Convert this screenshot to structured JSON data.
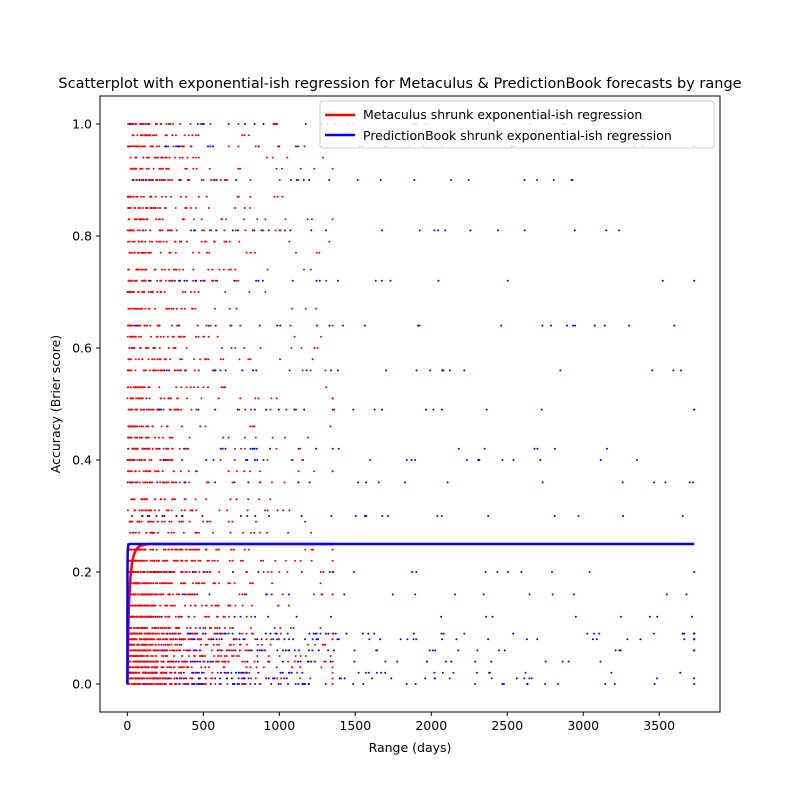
{
  "chart_data": {
    "type": "scatter",
    "title": "Scatterplot with exponential-ish regression for Metaculus & PredictionBook forecasts by range",
    "xlabel": "Range (days)",
    "ylabel": "Accuracy (Brier score)",
    "xlim": [
      -180,
      3900
    ],
    "ylim": [
      -0.05,
      1.05
    ],
    "xticks": [
      0,
      500,
      1000,
      1500,
      2000,
      2500,
      3000,
      3500
    ],
    "yticks": [
      0.0,
      0.2,
      0.4,
      0.6,
      0.8,
      1.0
    ],
    "xtick_labels": [
      "0",
      "500",
      "1000",
      "1500",
      "2000",
      "2500",
      "3000",
      "3500"
    ],
    "ytick_labels": [
      "0.0",
      "0.2",
      "0.4",
      "0.6",
      "0.8",
      "1.0"
    ],
    "grid": false,
    "legend_position": "top-right",
    "series": [
      {
        "name": "Metaculus",
        "color": "#ff0000",
        "kind": "points",
        "max_x": 1350,
        "brier_levels": [
          0.0,
          0.01,
          0.02,
          0.03,
          0.04,
          0.05,
          0.06,
          0.07,
          0.08,
          0.09,
          0.1,
          0.12,
          0.14,
          0.16,
          0.18,
          0.2,
          0.22,
          0.24,
          0.25,
          0.27,
          0.29,
          0.31,
          0.33,
          0.36,
          0.38,
          0.4,
          0.42,
          0.44,
          0.46,
          0.49,
          0.51,
          0.53,
          0.56,
          0.58,
          0.6,
          0.62,
          0.64,
          0.67,
          0.7,
          0.72,
          0.74,
          0.77,
          0.79,
          0.81,
          0.83,
          0.85,
          0.87,
          0.9,
          0.92,
          0.94,
          0.96,
          0.98,
          1.0
        ]
      },
      {
        "name": "PredictionBook",
        "color": "#0000ff",
        "kind": "points",
        "max_x": 3730,
        "brier_levels": [
          0.0,
          0.01,
          0.02,
          0.04,
          0.06,
          0.08,
          0.09,
          0.12,
          0.16,
          0.2,
          0.25,
          0.3,
          0.36,
          0.4,
          0.42,
          0.49,
          0.56,
          0.64,
          0.72,
          0.81,
          0.9,
          0.96,
          1.0
        ]
      },
      {
        "name": "Metaculus shrunk exponential-ish regression",
        "color": "#ff0000",
        "kind": "regression",
        "x": [
          0,
          5,
          10,
          20,
          30,
          40,
          50,
          60,
          70,
          80,
          90,
          100,
          120,
          140,
          1360
        ],
        "y": [
          0.0,
          0.08,
          0.14,
          0.19,
          0.215,
          0.228,
          0.236,
          0.241,
          0.244,
          0.246,
          0.247,
          0.248,
          0.249,
          0.25,
          0.25
        ]
      },
      {
        "name": "PredictionBook shrunk exponential-ish regression",
        "color": "#0000ff",
        "kind": "regression",
        "x": [
          0,
          1,
          2,
          4,
          8,
          15,
          30,
          3730
        ],
        "y": [
          0.0,
          0.2,
          0.235,
          0.245,
          0.249,
          0.25,
          0.25,
          0.25
        ]
      }
    ],
    "legend": [
      {
        "label": "Metaculus shrunk exponential-ish regression",
        "color": "#ff0000"
      },
      {
        "label": "PredictionBook shrunk exponential-ish regression",
        "color": "#0000ff"
      }
    ]
  }
}
